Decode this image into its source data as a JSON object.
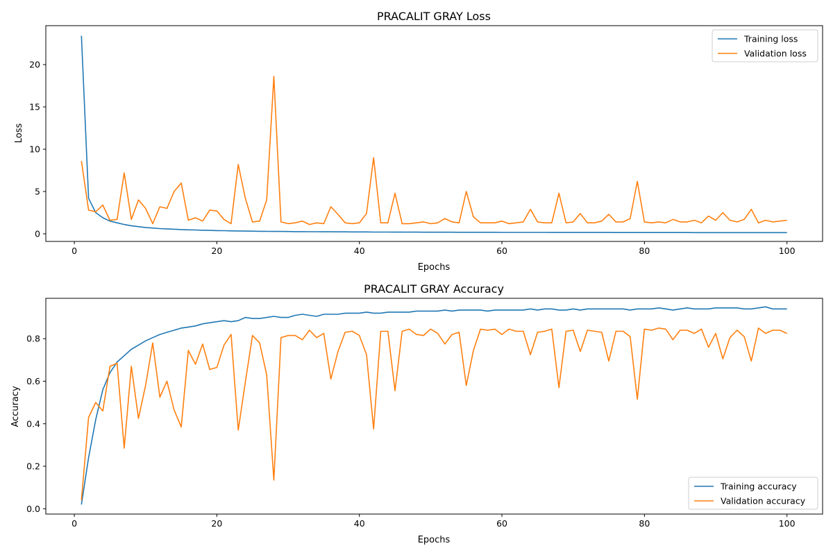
{
  "chart_data": [
    {
      "type": "line",
      "title": "PRACALIT GRAY Loss",
      "xlabel": "Epochs",
      "ylabel": "Loss",
      "xlim": [
        -4,
        105
      ],
      "ylim": [
        -0.9,
        24.6
      ],
      "xticks": [
        0,
        20,
        40,
        60,
        80,
        100
      ],
      "yticks": [
        0,
        5,
        10,
        15,
        20
      ],
      "grid": false,
      "legend_position": "upper right",
      "x": [
        1,
        2,
        3,
        4,
        5,
        6,
        7,
        8,
        9,
        10,
        11,
        12,
        13,
        14,
        15,
        16,
        17,
        18,
        19,
        20,
        21,
        22,
        23,
        24,
        25,
        26,
        27,
        28,
        29,
        30,
        31,
        32,
        33,
        34,
        35,
        36,
        37,
        38,
        39,
        40,
        41,
        42,
        43,
        44,
        45,
        46,
        47,
        48,
        49,
        50,
        51,
        52,
        53,
        54,
        55,
        56,
        57,
        58,
        59,
        60,
        61,
        62,
        63,
        64,
        65,
        66,
        67,
        68,
        69,
        70,
        71,
        72,
        73,
        74,
        75,
        76,
        77,
        78,
        79,
        80,
        81,
        82,
        83,
        84,
        85,
        86,
        87,
        88,
        89,
        90,
        91,
        92,
        93,
        94,
        95,
        96,
        97,
        98,
        99,
        100
      ],
      "series": [
        {
          "name": "Training loss",
          "color": "#1f77b4",
          "values": [
            23.4,
            4.2,
            2.5,
            1.9,
            1.5,
            1.3,
            1.1,
            0.95,
            0.85,
            0.75,
            0.68,
            0.62,
            0.58,
            0.54,
            0.5,
            0.47,
            0.45,
            0.42,
            0.4,
            0.38,
            0.37,
            0.35,
            0.34,
            0.32,
            0.31,
            0.3,
            0.29,
            0.28,
            0.28,
            0.27,
            0.26,
            0.26,
            0.25,
            0.25,
            0.24,
            0.24,
            0.23,
            0.23,
            0.22,
            0.22,
            0.22,
            0.21,
            0.21,
            0.21,
            0.2,
            0.2,
            0.2,
            0.2,
            0.19,
            0.19,
            0.19,
            0.19,
            0.19,
            0.18,
            0.18,
            0.18,
            0.18,
            0.18,
            0.18,
            0.17,
            0.17,
            0.17,
            0.17,
            0.17,
            0.17,
            0.17,
            0.16,
            0.16,
            0.16,
            0.16,
            0.16,
            0.16,
            0.16,
            0.16,
            0.16,
            0.15,
            0.15,
            0.15,
            0.15,
            0.15,
            0.15,
            0.15,
            0.15,
            0.15,
            0.15,
            0.15,
            0.14,
            0.14,
            0.14,
            0.14,
            0.14,
            0.14,
            0.14,
            0.14,
            0.14,
            0.14,
            0.14,
            0.14,
            0.14,
            0.14
          ]
        },
        {
          "name": "Validation loss",
          "color": "#ff7f0e",
          "values": [
            8.6,
            2.8,
            2.6,
            3.4,
            1.6,
            1.7,
            7.2,
            1.7,
            4.0,
            3.0,
            1.2,
            3.2,
            3.0,
            5.0,
            6.0,
            1.6,
            1.9,
            1.5,
            2.8,
            2.7,
            1.7,
            1.2,
            8.2,
            4.2,
            1.4,
            1.5,
            4.0,
            18.6,
            1.4,
            1.2,
            1.3,
            1.5,
            1.1,
            1.3,
            1.2,
            3.2,
            2.3,
            1.3,
            1.2,
            1.3,
            2.4,
            9.0,
            1.3,
            1.3,
            4.8,
            1.2,
            1.2,
            1.3,
            1.4,
            1.2,
            1.3,
            1.8,
            1.4,
            1.3,
            5.0,
            2.0,
            1.3,
            1.3,
            1.3,
            1.5,
            1.2,
            1.3,
            1.4,
            2.9,
            1.4,
            1.3,
            1.3,
            4.8,
            1.3,
            1.4,
            2.4,
            1.3,
            1.3,
            1.5,
            2.3,
            1.4,
            1.4,
            1.8,
            6.2,
            1.4,
            1.3,
            1.4,
            1.3,
            1.7,
            1.4,
            1.4,
            1.6,
            1.3,
            2.1,
            1.6,
            2.5,
            1.6,
            1.4,
            1.7,
            2.9,
            1.3,
            1.6,
            1.4,
            1.5,
            1.6
          ]
        }
      ]
    },
    {
      "type": "line",
      "title": "PRACALIT GRAY Accuracy",
      "xlabel": "Epochs",
      "ylabel": "Accuracy",
      "xlim": [
        -4,
        105
      ],
      "ylim": [
        -0.025,
        0.99
      ],
      "xticks": [
        0,
        20,
        40,
        60,
        80,
        100
      ],
      "yticks": [
        0.0,
        0.2,
        0.4,
        0.6,
        0.8
      ],
      "grid": false,
      "legend_position": "lower right",
      "x": [
        1,
        2,
        3,
        4,
        5,
        6,
        7,
        8,
        9,
        10,
        11,
        12,
        13,
        14,
        15,
        16,
        17,
        18,
        19,
        20,
        21,
        22,
        23,
        24,
        25,
        26,
        27,
        28,
        29,
        30,
        31,
        32,
        33,
        34,
        35,
        36,
        37,
        38,
        39,
        40,
        41,
        42,
        43,
        44,
        45,
        46,
        47,
        48,
        49,
        50,
        51,
        52,
        53,
        54,
        55,
        56,
        57,
        58,
        59,
        60,
        61,
        62,
        63,
        64,
        65,
        66,
        67,
        68,
        69,
        70,
        71,
        72,
        73,
        74,
        75,
        76,
        77,
        78,
        79,
        80,
        81,
        82,
        83,
        84,
        85,
        86,
        87,
        88,
        89,
        90,
        91,
        92,
        93,
        94,
        95,
        96,
        97,
        98,
        99,
        100
      ],
      "series": [
        {
          "name": "Training accuracy",
          "color": "#1f77b4",
          "values": [
            0.02,
            0.24,
            0.42,
            0.56,
            0.64,
            0.69,
            0.72,
            0.75,
            0.77,
            0.79,
            0.805,
            0.82,
            0.83,
            0.84,
            0.85,
            0.855,
            0.86,
            0.87,
            0.875,
            0.88,
            0.885,
            0.88,
            0.885,
            0.9,
            0.895,
            0.895,
            0.9,
            0.905,
            0.9,
            0.9,
            0.91,
            0.915,
            0.91,
            0.905,
            0.915,
            0.915,
            0.915,
            0.92,
            0.92,
            0.92,
            0.925,
            0.92,
            0.92,
            0.925,
            0.925,
            0.925,
            0.925,
            0.93,
            0.93,
            0.93,
            0.93,
            0.935,
            0.93,
            0.935,
            0.935,
            0.935,
            0.935,
            0.93,
            0.935,
            0.935,
            0.935,
            0.935,
            0.935,
            0.94,
            0.935,
            0.94,
            0.94,
            0.935,
            0.935,
            0.94,
            0.935,
            0.94,
            0.94,
            0.94,
            0.94,
            0.94,
            0.94,
            0.935,
            0.94,
            0.94,
            0.94,
            0.945,
            0.94,
            0.935,
            0.94,
            0.945,
            0.94,
            0.94,
            0.94,
            0.945,
            0.945,
            0.945,
            0.945,
            0.94,
            0.94,
            0.945,
            0.95,
            0.94,
            0.94,
            0.94
          ]
        },
        {
          "name": "Validation accuracy",
          "color": "#ff7f0e",
          "values": [
            0.04,
            0.43,
            0.5,
            0.46,
            0.67,
            0.685,
            0.285,
            0.67,
            0.425,
            0.58,
            0.78,
            0.525,
            0.6,
            0.465,
            0.385,
            0.745,
            0.68,
            0.775,
            0.655,
            0.665,
            0.77,
            0.82,
            0.37,
            0.595,
            0.815,
            0.78,
            0.63,
            0.135,
            0.805,
            0.815,
            0.815,
            0.795,
            0.84,
            0.805,
            0.825,
            0.61,
            0.74,
            0.83,
            0.835,
            0.815,
            0.725,
            0.375,
            0.835,
            0.835,
            0.555,
            0.835,
            0.845,
            0.82,
            0.815,
            0.845,
            0.825,
            0.775,
            0.82,
            0.83,
            0.58,
            0.745,
            0.845,
            0.84,
            0.845,
            0.82,
            0.845,
            0.835,
            0.835,
            0.725,
            0.83,
            0.835,
            0.845,
            0.57,
            0.835,
            0.84,
            0.74,
            0.84,
            0.835,
            0.83,
            0.695,
            0.835,
            0.835,
            0.81,
            0.515,
            0.845,
            0.84,
            0.85,
            0.845,
            0.795,
            0.84,
            0.84,
            0.825,
            0.845,
            0.76,
            0.825,
            0.705,
            0.805,
            0.84,
            0.81,
            0.695,
            0.85,
            0.825,
            0.84,
            0.84,
            0.825
          ]
        }
      ]
    }
  ]
}
